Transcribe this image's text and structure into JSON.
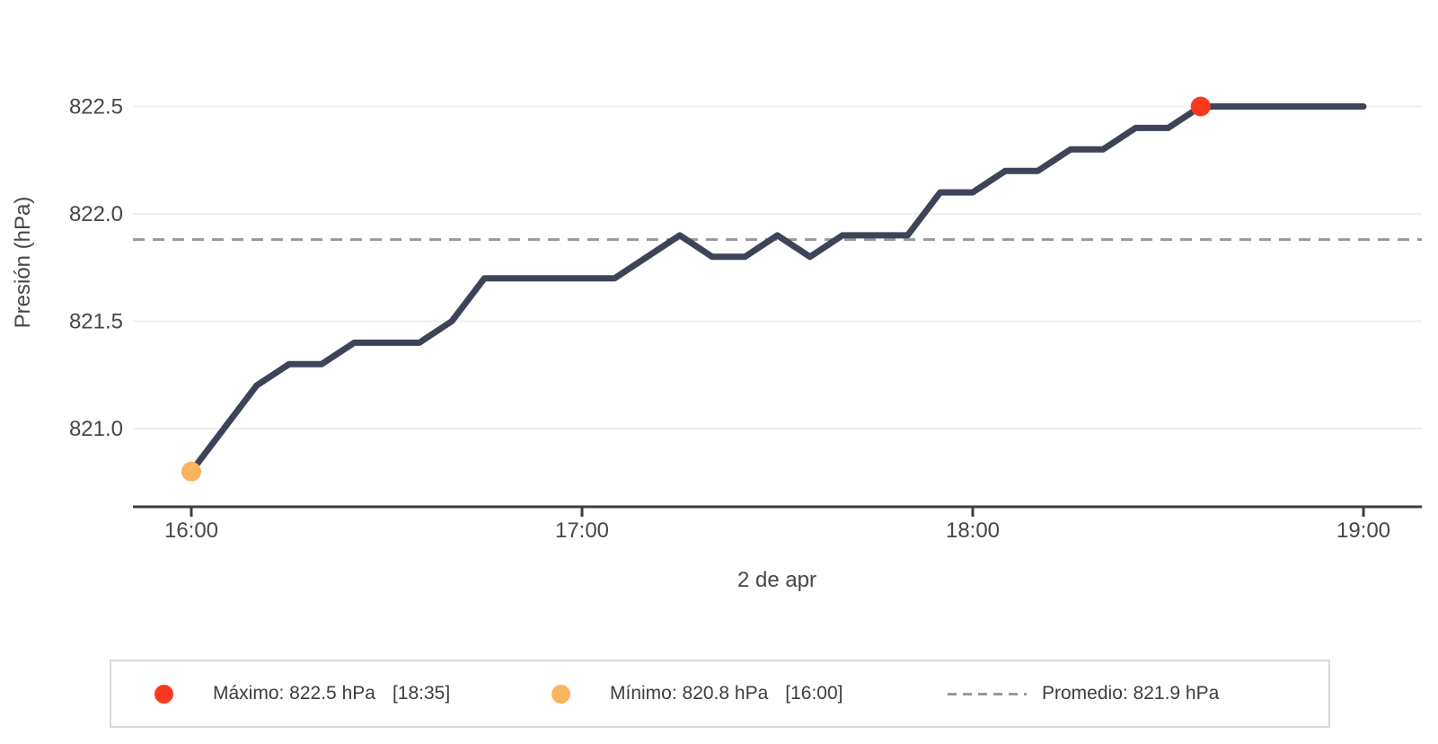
{
  "chart_data": {
    "type": "line",
    "title": "",
    "xlabel": "2 de apr",
    "ylabel": "Presión (hPa)",
    "x": [
      "16:00",
      "16:05",
      "16:10",
      "16:15",
      "16:20",
      "16:25",
      "16:30",
      "16:35",
      "16:40",
      "16:45",
      "16:50",
      "16:55",
      "17:00",
      "17:05",
      "17:10",
      "17:15",
      "17:20",
      "17:25",
      "17:30",
      "17:35",
      "17:40",
      "17:45",
      "17:50",
      "17:55",
      "18:00",
      "18:05",
      "18:10",
      "18:15",
      "18:20",
      "18:25",
      "18:30",
      "18:35",
      "18:40",
      "18:45",
      "18:50",
      "18:55",
      "19:00"
    ],
    "y": [
      820.8,
      821.0,
      821.2,
      821.3,
      821.3,
      821.4,
      821.4,
      821.4,
      821.5,
      821.7,
      821.7,
      821.7,
      821.7,
      821.7,
      821.8,
      821.9,
      821.8,
      821.8,
      821.9,
      821.8,
      821.9,
      821.9,
      821.9,
      822.1,
      822.1,
      822.2,
      822.2,
      822.3,
      822.3,
      822.4,
      822.4,
      822.5,
      822.5,
      822.5,
      822.5,
      822.5,
      822.5
    ],
    "series_name": "Presión",
    "line_color": "#3e4457",
    "x_tick_labels": [
      "16:00",
      "17:00",
      "18:00",
      "19:00"
    ],
    "x_tick_indices": [
      0,
      12,
      24,
      36
    ],
    "y_tick_labels": [
      "821.0",
      "821.5",
      "822.0",
      "822.5"
    ],
    "y_tick_values": [
      821.0,
      821.5,
      822.0,
      822.5
    ],
    "ylim": [
      820.63,
      822.68
    ],
    "grid": "horizontal",
    "legend_position": "bottom",
    "annotations": {
      "max": {
        "value": 822.5,
        "time": "18:35",
        "index": 31,
        "color": "#fa3a20"
      },
      "min": {
        "value": 820.8,
        "time": "16:00",
        "index": 0,
        "color": "#fbb35f"
      },
      "average": {
        "value": 821.88,
        "display": "821.9",
        "color": "#999999",
        "style": "dashed"
      }
    }
  },
  "axes": {
    "y_title": "Presión (hPa)",
    "x_title": "2 de apr"
  },
  "legend": {
    "max_label": "Máximo: 822.5 hPa",
    "max_time": "[18:35]",
    "min_label": "Mínimo: 820.8 hPa",
    "min_time": "[16:00]",
    "avg_label": "Promedio: 821.9 hPa"
  },
  "colors": {
    "line": "#3e4457",
    "max_marker": "#fa3a20",
    "min_marker": "#fbb35f",
    "average_line": "#999999",
    "gridline": "#efefef",
    "axis_line": "#3d3d3d",
    "tick_text": "#474747",
    "legend_border": "#d8d8d8",
    "legend_text": "#3d3d3d"
  }
}
